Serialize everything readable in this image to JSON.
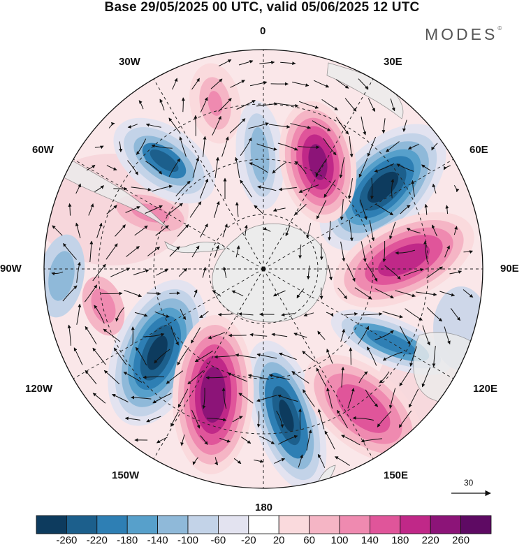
{
  "title": "Base 29/05/2025 00 UTC, valid 05/06/2025 12 UTC",
  "brand": "MODES",
  "brand_mark": "©",
  "longitude_labels": {
    "n0": "0",
    "e30": "30E",
    "e60": "60E",
    "e90": "90E",
    "e120": "120E",
    "e150": "150E",
    "s180": "180",
    "w150": "150W",
    "w120": "120W",
    "w90": "90W",
    "w60": "60W",
    "w30": "30W"
  },
  "reference_vector": {
    "label": "30"
  },
  "colorbar": {
    "ticks": [
      "-260",
      "-220",
      "-180",
      "-140",
      "-100",
      "-60",
      "-20",
      "20",
      "60",
      "100",
      "140",
      "180",
      "220",
      "260"
    ],
    "colors": [
      "#0d3b5e",
      "#1c5f8c",
      "#2e7fb4",
      "#57a0cb",
      "#8fb9d9",
      "#c3d3e8",
      "#e3e3f0",
      "#ffffff",
      "#fadadd",
      "#f5b5c5",
      "#ef8ab0",
      "#e0559a",
      "#c02888",
      "#8c1478",
      "#5e0a63"
    ]
  },
  "colors": {
    "land": "#ececec",
    "coast": "#777777",
    "grid": "#222222"
  }
}
